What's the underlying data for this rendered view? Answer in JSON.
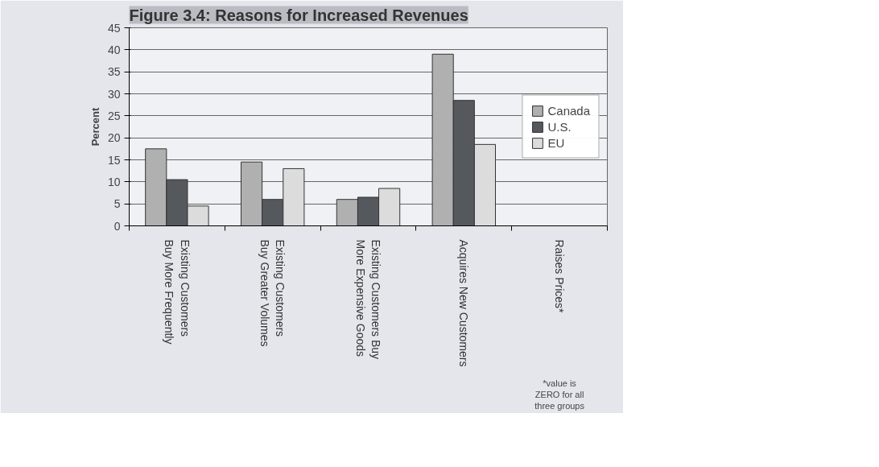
{
  "chart_data": {
    "type": "bar",
    "title": "Figure 3.4: Reasons for Increased Revenues",
    "ylabel": "Percent",
    "categories": [
      "Existing Customers\nBuy More Frequently",
      "Existing Customers\nBuy Greater Volumes",
      "Existing Customers Buy\nMore Expensive Goods",
      "Acquires New Customers",
      "Raises Prices*"
    ],
    "series": [
      {
        "name": "Canada",
        "color": "#b0b0b0",
        "values": [
          17.5,
          14.5,
          6,
          39,
          0
        ]
      },
      {
        "name": "U.S.",
        "color": "#55595e",
        "values": [
          10.5,
          6,
          6.5,
          28.5,
          0
        ]
      },
      {
        "name": "EU",
        "color": "#dcdcdc",
        "values": [
          4.5,
          13,
          8.5,
          18.5,
          0
        ]
      }
    ],
    "ylim": [
      0,
      45
    ],
    "yticks": [
      0,
      5,
      10,
      15,
      20,
      25,
      30,
      35,
      40,
      45
    ],
    "grid": "y",
    "legend": "right",
    "annotations": [
      "*value is\nZERO for all\nthree groups"
    ]
  }
}
